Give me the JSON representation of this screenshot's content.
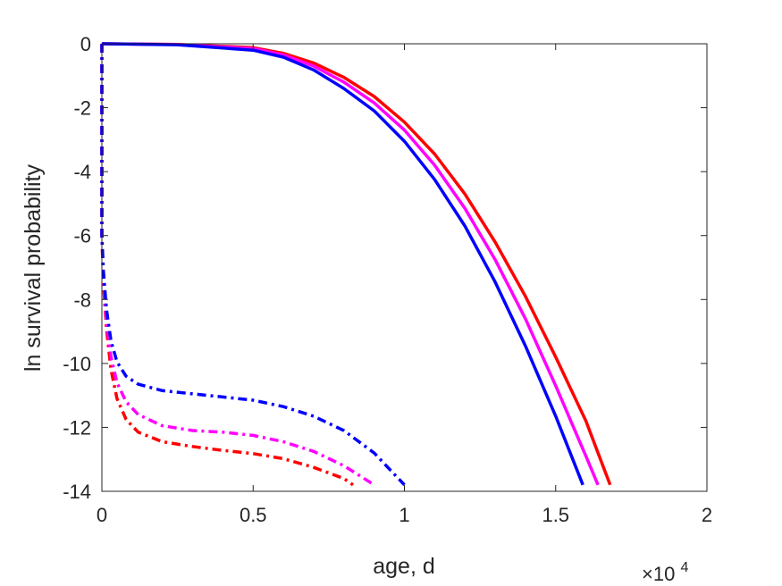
{
  "chart_data": {
    "type": "line",
    "title": "",
    "xlabel": "age, d",
    "ylabel": "ln survival probability",
    "x_exponent_label": {
      "base": "×10",
      "exp": "4"
    },
    "xlim": [
      0,
      20000
    ],
    "ylim": [
      -14,
      0
    ],
    "xticks": [
      0,
      5000,
      10000,
      15000,
      20000
    ],
    "xtick_labels": [
      "0",
      "0.5",
      "1",
      "1.5",
      "2"
    ],
    "yticks": [
      0,
      -2,
      -4,
      -6,
      -8,
      -10,
      -12,
      -14
    ],
    "ytick_labels": [
      "0",
      "-2",
      "-4",
      "-6",
      "-8",
      "-10",
      "-12",
      "-14"
    ],
    "grid": false,
    "box": true,
    "series": [
      {
        "color": "#ff0000",
        "style": "solid",
        "points": [
          [
            0,
            0
          ],
          [
            2500,
            -0.02
          ],
          [
            5000,
            -0.12
          ],
          [
            6000,
            -0.3
          ],
          [
            7000,
            -0.6
          ],
          [
            8000,
            -1.05
          ],
          [
            9000,
            -1.65
          ],
          [
            10000,
            -2.45
          ],
          [
            11000,
            -3.45
          ],
          [
            12000,
            -4.7
          ],
          [
            13000,
            -6.2
          ],
          [
            14000,
            -7.9
          ],
          [
            15000,
            -9.8
          ],
          [
            16000,
            -11.8
          ],
          [
            16800,
            -13.8
          ]
        ]
      },
      {
        "color": "#ff00ff",
        "style": "solid",
        "points": [
          [
            0,
            0
          ],
          [
            2500,
            -0.02
          ],
          [
            5000,
            -0.15
          ],
          [
            6000,
            -0.35
          ],
          [
            7000,
            -0.7
          ],
          [
            8000,
            -1.2
          ],
          [
            9000,
            -1.85
          ],
          [
            10000,
            -2.7
          ],
          [
            11000,
            -3.8
          ],
          [
            12000,
            -5.15
          ],
          [
            13000,
            -6.75
          ],
          [
            14000,
            -8.6
          ],
          [
            15000,
            -10.7
          ],
          [
            16000,
            -12.9
          ],
          [
            16400,
            -13.8
          ]
        ]
      },
      {
        "color": "#0000ff",
        "style": "solid",
        "points": [
          [
            0,
            0
          ],
          [
            2500,
            -0.03
          ],
          [
            5000,
            -0.2
          ],
          [
            6000,
            -0.42
          ],
          [
            7000,
            -0.82
          ],
          [
            8000,
            -1.4
          ],
          [
            9000,
            -2.1
          ],
          [
            10000,
            -3.05
          ],
          [
            11000,
            -4.25
          ],
          [
            12000,
            -5.7
          ],
          [
            13000,
            -7.45
          ],
          [
            14000,
            -9.45
          ],
          [
            15000,
            -11.65
          ],
          [
            15900,
            -13.8
          ]
        ]
      },
      {
        "color": "#ff0000",
        "style": "dashdot",
        "points": [
          [
            0,
            0
          ],
          [
            0,
            -6
          ],
          [
            50,
            -7.5
          ],
          [
            150,
            -8.9
          ],
          [
            300,
            -10.2
          ],
          [
            500,
            -11.1
          ],
          [
            800,
            -11.75
          ],
          [
            1200,
            -12.15
          ],
          [
            2000,
            -12.45
          ],
          [
            3000,
            -12.6
          ],
          [
            4000,
            -12.72
          ],
          [
            5000,
            -12.82
          ],
          [
            6000,
            -12.98
          ],
          [
            7000,
            -13.25
          ],
          [
            8000,
            -13.6
          ],
          [
            8300,
            -13.8
          ]
        ]
      },
      {
        "color": "#ff00ff",
        "style": "dashdot",
        "points": [
          [
            0,
            0
          ],
          [
            0,
            -6
          ],
          [
            50,
            -7.3
          ],
          [
            150,
            -8.7
          ],
          [
            300,
            -9.8
          ],
          [
            500,
            -10.6
          ],
          [
            800,
            -11.2
          ],
          [
            1200,
            -11.6
          ],
          [
            2000,
            -11.95
          ],
          [
            3000,
            -12.1
          ],
          [
            4000,
            -12.15
          ],
          [
            5000,
            -12.25
          ],
          [
            6000,
            -12.45
          ],
          [
            7000,
            -12.75
          ],
          [
            8000,
            -13.2
          ],
          [
            9000,
            -13.8
          ]
        ]
      },
      {
        "color": "#0000ff",
        "style": "dashdot",
        "points": [
          [
            0,
            0
          ],
          [
            0,
            -6
          ],
          [
            50,
            -7.1
          ],
          [
            150,
            -8.3
          ],
          [
            300,
            -9.3
          ],
          [
            500,
            -9.95
          ],
          [
            800,
            -10.4
          ],
          [
            1200,
            -10.65
          ],
          [
            2000,
            -10.85
          ],
          [
            3000,
            -10.95
          ],
          [
            4000,
            -11.05
          ],
          [
            5000,
            -11.15
          ],
          [
            6000,
            -11.35
          ],
          [
            7000,
            -11.65
          ],
          [
            8000,
            -12.1
          ],
          [
            9000,
            -12.8
          ],
          [
            10000,
            -13.8
          ]
        ]
      }
    ]
  }
}
